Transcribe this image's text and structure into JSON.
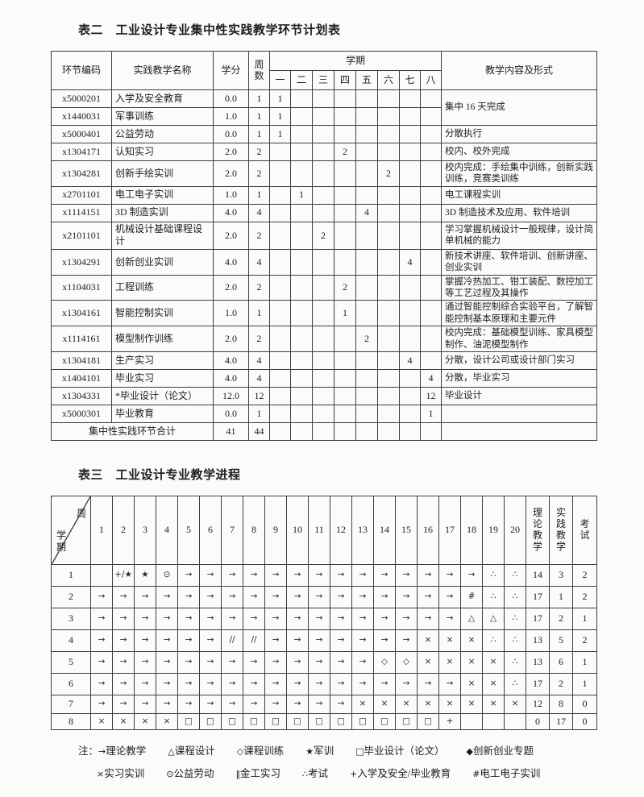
{
  "table2": {
    "title": "表二　工业设计专业集中性实践教学环节计划表",
    "header": {
      "code": "环节编码",
      "name": "实践教学名称",
      "credits": "学分",
      "weeks": "周数",
      "semester": "学期",
      "semester_cols": [
        "一",
        "二",
        "三",
        "四",
        "五",
        "六",
        "七",
        "八"
      ],
      "content": "教学内容及形式"
    },
    "rows": [
      {
        "code": "x5000201",
        "name": "入学及安全教育",
        "credits": "0.0",
        "weeks": "1",
        "sem": {
          "1": "1"
        },
        "content": "集中 16 天完成",
        "content_rowspan": 2
      },
      {
        "code": "x1440031",
        "name": "军事训练",
        "credits": "1.0",
        "weeks": "1",
        "sem": {
          "1": "1"
        },
        "content": null
      },
      {
        "code": "x5000401",
        "name": "公益劳动",
        "credits": "0.0",
        "weeks": "1",
        "sem": {
          "1": "1"
        },
        "content": "分散执行"
      },
      {
        "code": "x1304171",
        "name": "认知实习",
        "credits": "2.0",
        "weeks": "2",
        "sem": {
          "4": "2"
        },
        "content": "校内、校外完成"
      },
      {
        "code": "x1304281",
        "name": "创新手绘实训",
        "credits": "2.0",
        "weeks": "2",
        "sem": {
          "6": "2"
        },
        "content": "校内完成：手绘集中训练，创新实践训练，竞赛类训练"
      },
      {
        "code": "x2701101",
        "name": "电工电子实训",
        "credits": "1.0",
        "weeks": "1",
        "sem": {
          "2": "1"
        },
        "content": "电工课程实训"
      },
      {
        "code": "x1114151",
        "name": "3D 制造实训",
        "credits": "4.0",
        "weeks": "4",
        "sem": {
          "5": "4"
        },
        "content": "3D 制造技术及应用、软件培训"
      },
      {
        "code": "x2101101",
        "name": "机械设计基础课程设计",
        "credits": "2.0",
        "weeks": "2",
        "sem": {
          "3": "2"
        },
        "content": "学习掌握机械设计一般规律，设计简单机械的能力"
      },
      {
        "code": "x1304291",
        "name": "创新创业实训",
        "credits": "4.0",
        "weeks": "4",
        "sem": {
          "7": "4"
        },
        "content": "新技术讲座、软件培训、创新讲座、创业实训"
      },
      {
        "code": "x1104031",
        "name": "工程训练",
        "credits": "2.0",
        "weeks": "2",
        "sem": {
          "4": "2"
        },
        "content": "掌握冷热加工、钳工装配、数控加工等工艺过程及其操作"
      },
      {
        "code": "x1304161",
        "name": "智能控制实训",
        "credits": "1.0",
        "weeks": "1",
        "sem": {
          "4": "1"
        },
        "content": "通过智能控制综合实验平台，了解智能控制基本原理和主要元件"
      },
      {
        "code": "x1114161",
        "name": "模型制作训练",
        "credits": "2.0",
        "weeks": "2",
        "sem": {
          "5": "2"
        },
        "content": "校内完成：基础模型训练、家具模型制作、油泥模型制作"
      },
      {
        "code": "x1304181",
        "name": "生产实习",
        "credits": "4.0",
        "weeks": "4",
        "sem": {
          "7": "4"
        },
        "content": "分散，设计公司或设计部门实习"
      },
      {
        "code": "x1404101",
        "name": "毕业实习",
        "credits": "4.0",
        "weeks": "4",
        "sem": {
          "8": "4"
        },
        "content": "分散，毕业实习"
      },
      {
        "code": "x1304331",
        "name": "*毕业设计（论文）",
        "credits": "12.0",
        "weeks": "12",
        "sem": {
          "8": "12"
        },
        "content": "毕业设计"
      },
      {
        "code": "x5000301",
        "name": "毕业教育",
        "credits": "0.0",
        "weeks": "1",
        "sem": {
          "8": "1"
        },
        "content": ""
      }
    ],
    "footer": {
      "label": "集中性实践环节合计",
      "credits": "41",
      "weeks": "44"
    }
  },
  "table3": {
    "title": "表三　工业设计专业教学进程",
    "corner": {
      "top": "周",
      "bottom": "学期"
    },
    "week_headers": [
      "1",
      "2",
      "3",
      "4",
      "5",
      "6",
      "7",
      "8",
      "9",
      "10",
      "11",
      "12",
      "13",
      "14",
      "15",
      "16",
      "17",
      "18",
      "19",
      "20"
    ],
    "total_headers": [
      "理论教学",
      "实践教学",
      "考试"
    ],
    "rows": [
      {
        "sem": "1",
        "cells": [
          "",
          "+/★",
          "★",
          "⊙",
          "→",
          "→",
          "→",
          "→",
          "→",
          "→",
          "→",
          "→",
          "→",
          "→",
          "→",
          "→",
          "→",
          "→",
          "∴",
          "∴"
        ],
        "totals": [
          "14",
          "3",
          "2"
        ]
      },
      {
        "sem": "2",
        "cells": [
          "→",
          "→",
          "→",
          "→",
          "→",
          "→",
          "→",
          "→",
          "→",
          "→",
          "→",
          "→",
          "→",
          "→",
          "→",
          "→",
          "→",
          "#",
          "∴",
          "∴"
        ],
        "totals": [
          "17",
          "1",
          "2"
        ]
      },
      {
        "sem": "3",
        "cells": [
          "→",
          "→",
          "→",
          "→",
          "→",
          "→",
          "→",
          "→",
          "→",
          "→",
          "→",
          "→",
          "→",
          "→",
          "→",
          "→",
          "→",
          "△",
          "△",
          "∴"
        ],
        "totals": [
          "17",
          "2",
          "1"
        ]
      },
      {
        "sem": "4",
        "cells": [
          "→",
          "→",
          "→",
          "→",
          "→",
          "→",
          "//",
          "//",
          "→",
          "→",
          "→",
          "→",
          "→",
          "→",
          "→",
          "×",
          "×",
          "×",
          "∴",
          "∴"
        ],
        "totals": [
          "13",
          "5",
          "2"
        ]
      },
      {
        "sem": "5",
        "cells": [
          "→",
          "→",
          "→",
          "→",
          "→",
          "→",
          "→",
          "→",
          "→",
          "→",
          "→",
          "→",
          "→",
          "◇",
          "◇",
          "×",
          "×",
          "×",
          "×",
          "∴"
        ],
        "totals": [
          "13",
          "6",
          "1"
        ]
      },
      {
        "sem": "6",
        "cells": [
          "→",
          "→",
          "→",
          "→",
          "→",
          "→",
          "→",
          "→",
          "→",
          "→",
          "→",
          "→",
          "→",
          "→",
          "→",
          "→",
          "→",
          "×",
          "×",
          "∴"
        ],
        "totals": [
          "17",
          "2",
          "1"
        ]
      },
      {
        "sem": "7",
        "cells": [
          "→",
          "→",
          "→",
          "→",
          "→",
          "→",
          "→",
          "→",
          "→",
          "→",
          "→",
          "→",
          "×",
          "×",
          "×",
          "×",
          "×",
          "×",
          "×",
          "×"
        ],
        "totals": [
          "12",
          "8",
          "0"
        ]
      },
      {
        "sem": "8",
        "cells": [
          "×",
          "×",
          "×",
          "×",
          "□",
          "□",
          "□",
          "□",
          "□",
          "□",
          "□",
          "□",
          "□",
          "□",
          "□",
          "□",
          "+",
          "",
          "",
          ""
        ],
        "totals": [
          "0",
          "17",
          "0"
        ]
      }
    ]
  },
  "note": {
    "prefix": "注：",
    "line1": [
      {
        "sym": "→",
        "label": "理论教学"
      },
      {
        "sym": "△",
        "label": "课程设计"
      },
      {
        "sym": "◇",
        "label": "课程训练"
      },
      {
        "sym": "★",
        "label": "军训"
      },
      {
        "sym": "□",
        "label": "毕业设计（论文）"
      },
      {
        "sym": "◆",
        "label": "创新创业专题"
      }
    ],
    "line2": [
      {
        "sym": "×",
        "label": "实习实训"
      },
      {
        "sym": "⊙",
        "label": "公益劳动"
      },
      {
        "sym": "‖",
        "label": "金工实习"
      },
      {
        "sym": "∴",
        "label": "考试"
      },
      {
        "sym": "+",
        "label": "入学及安全/毕业教育"
      },
      {
        "sym": "#",
        "label": "电工电子实训"
      }
    ]
  }
}
